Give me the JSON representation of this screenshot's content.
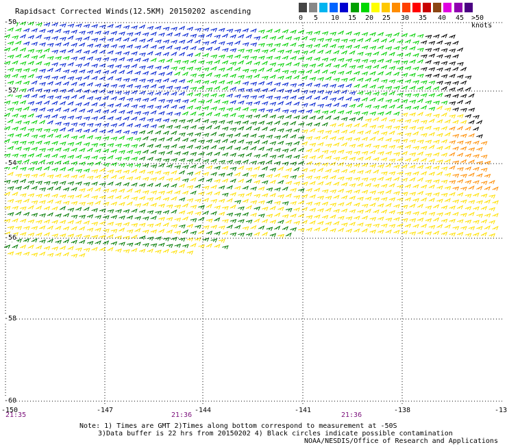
{
  "title": "Rapidsact Corrected Winds(12.5KM) 20150202 ascending",
  "legend": {
    "colors": [
      "#444444",
      "#888888",
      "#00b4f0",
      "#0064ff",
      "#0000d0",
      "#00a000",
      "#00d800",
      "#ffff00",
      "#ffc800",
      "#ff8c00",
      "#ff4000",
      "#ff0000",
      "#c80000",
      "#8b4513",
      "#e000e0",
      "#9000b0",
      "#4b0082"
    ],
    "labels": [
      "0",
      "5",
      "10",
      "15",
      "20",
      "25",
      "30",
      "35",
      "40",
      "45",
      ">50 knots"
    ]
  },
  "map": {
    "lat_labels": [
      "-50",
      "-52",
      "-54",
      "-56",
      "-58",
      "-60"
    ],
    "lon_labels": [
      "-150",
      "-147",
      "-144",
      "-141",
      "-138",
      "-13"
    ],
    "time_labels": [
      "21:35",
      "21:36",
      "21:36"
    ]
  },
  "notes": {
    "line1": "Note: 1) Times are GMT 2)Times along bottom correspond to measurement at -50S",
    "line2": "3)Data buffer is 22 hrs from 20150202 4) Black circles indicate possible contamination",
    "line3": "NOAA/NESDIS/Office of Research and Applications"
  },
  "wind_palette": {
    "blue": "#0020d0",
    "green": "#00d000",
    "dark_green": "#007a00",
    "yellow": "#ffe000",
    "orange": "#ff8c00",
    "black": "#000000"
  }
}
